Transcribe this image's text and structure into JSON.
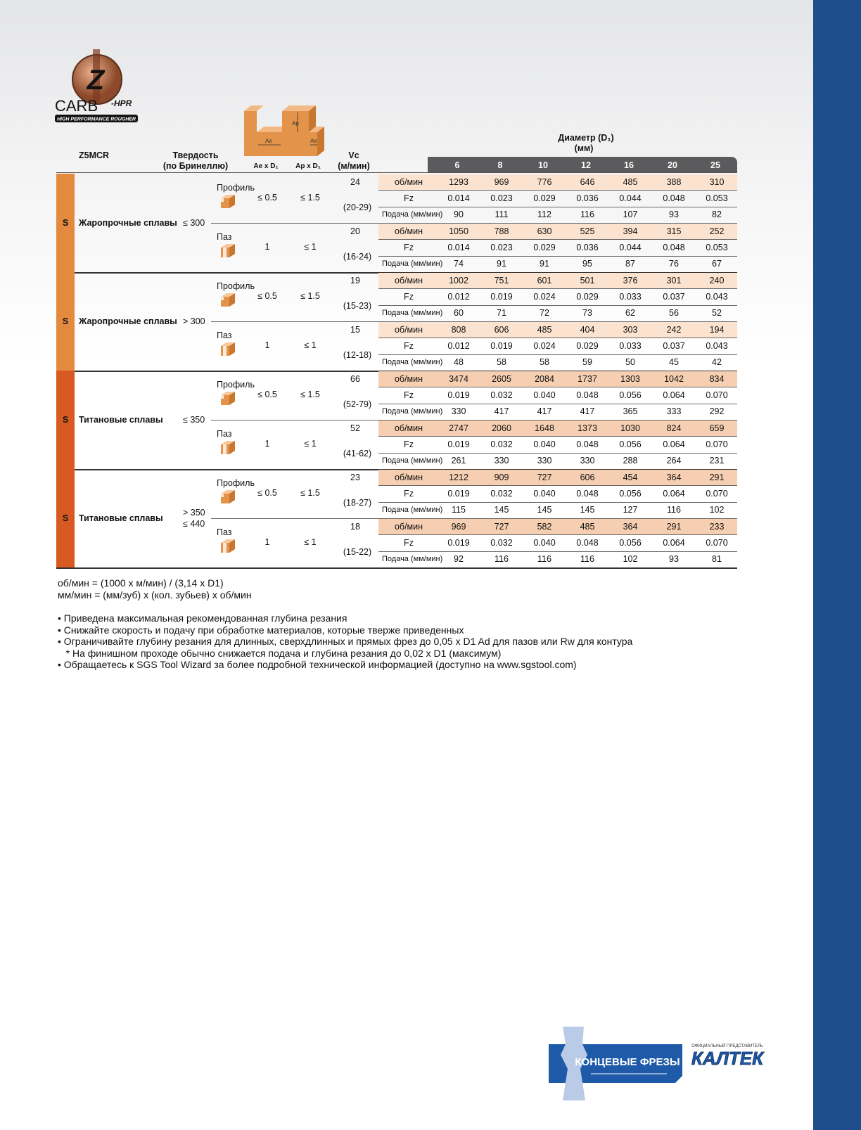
{
  "logo": {
    "letter": "Z",
    "brand": "CARB",
    "suffix": "-HPR",
    "tagline": "HIGH PERFORMANCE ROUGHER"
  },
  "diagram": {
    "ap": "Ap",
    "ae_left": "Ae",
    "ae_right": "Ae"
  },
  "header": {
    "series": "Z5MCR",
    "hardness": [
      "Твердость",
      "(по Бринеллю)"
    ],
    "ae": "Ae x D₁",
    "ap": "Ap x D₁",
    "vc": [
      "Vc",
      "(м/мин)"
    ],
    "diameter": [
      "Диаметр (D₁)",
      "(мм)"
    ],
    "diameters": [
      "6",
      "8",
      "10",
      "12",
      "16",
      "20",
      "25"
    ]
  },
  "row_labels": [
    "об/мин",
    "Fz",
    "Подача (мм/мин)"
  ],
  "groups": [
    {
      "code": "S",
      "name": "Жаропрочные сплавы",
      "hardness": [
        "≤ 300"
      ],
      "ops": [
        {
          "op": "Профиль",
          "ae": "≤ 0.5",
          "ap": "≤ 1.5",
          "vc": "24",
          "vc_range": "(20-29)",
          "rpm": [
            "1293",
            "969",
            "776",
            "646",
            "485",
            "388",
            "310"
          ],
          "fz": [
            "0.014",
            "0.023",
            "0.029",
            "0.036",
            "0.044",
            "0.048",
            "0.053"
          ],
          "feed": [
            "90",
            "111",
            "112",
            "116",
            "107",
            "93",
            "82"
          ]
        },
        {
          "op": "Паз",
          "ae": "1",
          "ap": "≤ 1",
          "vc": "20",
          "vc_range": "(16-24)",
          "rpm": [
            "1050",
            "788",
            "630",
            "525",
            "394",
            "315",
            "252"
          ],
          "fz": [
            "0.014",
            "0.023",
            "0.029",
            "0.036",
            "0.044",
            "0.048",
            "0.053"
          ],
          "feed": [
            "74",
            "91",
            "91",
            "95",
            "87",
            "76",
            "67"
          ]
        }
      ]
    },
    {
      "code": "S",
      "name": "Жаропрочные сплавы",
      "hardness": [
        "> 300"
      ],
      "ops": [
        {
          "op": "Профиль",
          "ae": "≤ 0.5",
          "ap": "≤ 1.5",
          "vc": "19",
          "vc_range": "(15-23)",
          "rpm": [
            "1002",
            "751",
            "601",
            "501",
            "376",
            "301",
            "240"
          ],
          "fz": [
            "0.012",
            "0.019",
            "0.024",
            "0.029",
            "0.033",
            "0.037",
            "0.043"
          ],
          "feed": [
            "60",
            "71",
            "72",
            "73",
            "62",
            "56",
            "52"
          ]
        },
        {
          "op": "Паз",
          "ae": "1",
          "ap": "≤ 1",
          "vc": "15",
          "vc_range": "(12-18)",
          "rpm": [
            "808",
            "606",
            "485",
            "404",
            "303",
            "242",
            "194"
          ],
          "fz": [
            "0.012",
            "0.019",
            "0.024",
            "0.029",
            "0.033",
            "0.037",
            "0.043"
          ],
          "feed": [
            "48",
            "58",
            "58",
            "59",
            "50",
            "45",
            "42"
          ]
        }
      ]
    },
    {
      "code": "S",
      "name": "Титановые сплавы",
      "hardness": [
        "≤ 350"
      ],
      "ops": [
        {
          "op": "Профиль",
          "ae": "≤ 0.5",
          "ap": "≤ 1.5",
          "vc": "66",
          "vc_range": "(52-79)",
          "rpm": [
            "3474",
            "2605",
            "2084",
            "1737",
            "1303",
            "1042",
            "834"
          ],
          "fz": [
            "0.019",
            "0.032",
            "0.040",
            "0.048",
            "0.056",
            "0.064",
            "0.070"
          ],
          "feed": [
            "330",
            "417",
            "417",
            "417",
            "365",
            "333",
            "292"
          ]
        },
        {
          "op": "Паз",
          "ae": "1",
          "ap": "≤ 1",
          "vc": "52",
          "vc_range": "(41-62)",
          "rpm": [
            "2747",
            "2060",
            "1648",
            "1373",
            "1030",
            "824",
            "659"
          ],
          "fz": [
            "0.019",
            "0.032",
            "0.040",
            "0.048",
            "0.056",
            "0.064",
            "0.070"
          ],
          "feed": [
            "261",
            "330",
            "330",
            "330",
            "288",
            "264",
            "231"
          ]
        }
      ]
    },
    {
      "code": "S",
      "name": "Титановые сплавы",
      "hardness": [
        "> 350",
        "≤ 440"
      ],
      "ops": [
        {
          "op": "Профиль",
          "ae": "≤ 0.5",
          "ap": "≤ 1.5",
          "vc": "23",
          "vc_range": "(18-27)",
          "rpm": [
            "1212",
            "909",
            "727",
            "606",
            "454",
            "364",
            "291"
          ],
          "fz": [
            "0.019",
            "0.032",
            "0.040",
            "0.048",
            "0.056",
            "0.064",
            "0.070"
          ],
          "feed": [
            "115",
            "145",
            "145",
            "145",
            "127",
            "116",
            "102"
          ]
        },
        {
          "op": "Паз",
          "ae": "1",
          "ap": "≤ 1",
          "vc": "18",
          "vc_range": "(15-22)",
          "rpm": [
            "969",
            "727",
            "582",
            "485",
            "364",
            "291",
            "233"
          ],
          "fz": [
            "0.019",
            "0.032",
            "0.040",
            "0.048",
            "0.056",
            "0.064",
            "0.070"
          ],
          "feed": [
            "92",
            "116",
            "116",
            "116",
            "102",
            "93",
            "81"
          ]
        }
      ]
    }
  ],
  "formulas": [
    "об/мин = (1000 x м/мин) / (3,14 x D1)",
    "мм/мин = (мм/зуб) x (кол. зубьев) x об/мин"
  ],
  "notes": [
    "• Приведена максимальная рекомендованная глубина резания",
    "• Снижайте скорость и подачу при обработке материалов, которые тверже приведенных",
    "• Ограничивайте глубину резания для длинных, сверхдлинных и прямых фрез до 0,05 x D1 Ad для пазов или Rw для контура",
    "   * На финишном проходе обычно снижается подача и глубина резания до 0,02 x D1 (максимум)",
    "• Обращаетесь к SGS Tool Wizard за более подробной технической информацией (доступно на www.sgstool.com)"
  ],
  "footer": {
    "banner": "КОНЦЕВЫЕ ФРЕЗЫ",
    "rep": "ОФИЦИАЛЬНЫЙ ПРЕДСТАВИТЕЛЬ",
    "company": "КАЛТЕК"
  }
}
